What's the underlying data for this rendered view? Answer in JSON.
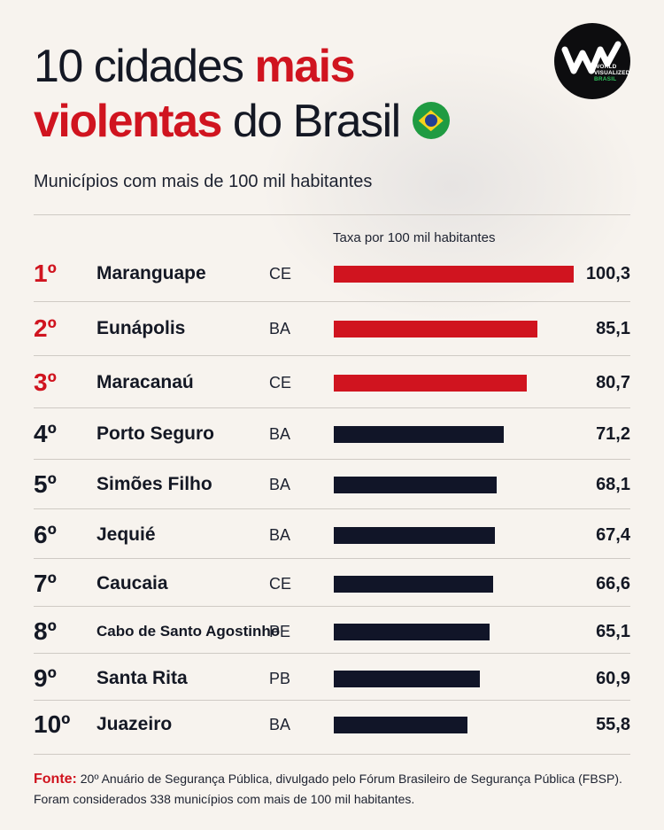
{
  "title": {
    "part1": "10 cidades ",
    "highlight1": "mais",
    "highlight2": "violentas",
    "part2": " do Brasil"
  },
  "subtitle": "Municípios com mais de 100 mil habitantes",
  "logo": {
    "line1": "WORLD",
    "line2": "VISUALIZED",
    "line3": "BRASIL"
  },
  "colors": {
    "accent": "#d0141f",
    "dark": "#111528"
  },
  "chart_data": {
    "type": "bar",
    "xlabel": "Taxa por 100 mil habitantes",
    "xlim": [
      0,
      100.3
    ],
    "rows": [
      {
        "rank": "1º",
        "city": "Maranguape",
        "state": "CE",
        "value": 100.3,
        "label": "100,3",
        "highlight": true
      },
      {
        "rank": "2º",
        "city": "Eunápolis",
        "state": "BA",
        "value": 85.1,
        "label": "85,1",
        "highlight": true
      },
      {
        "rank": "3º",
        "city": "Maracanaú",
        "state": "CE",
        "value": 80.7,
        "label": "80,7",
        "highlight": true
      },
      {
        "rank": "4º",
        "city": "Porto Seguro",
        "state": "BA",
        "value": 71.2,
        "label": "71,2",
        "highlight": false
      },
      {
        "rank": "5º",
        "city": "Simões Filho",
        "state": "BA",
        "value": 68.1,
        "label": "68,1",
        "highlight": false
      },
      {
        "rank": "6º",
        "city": "Jequié",
        "state": "BA",
        "value": 67.4,
        "label": "67,4",
        "highlight": false
      },
      {
        "rank": "7º",
        "city": "Caucaia",
        "state": "CE",
        "value": 66.6,
        "label": "66,6",
        "highlight": false
      },
      {
        "rank": "8º",
        "city": "Cabo de Santo Agostinho",
        "state": "PE",
        "value": 65.1,
        "label": "65,1",
        "highlight": false
      },
      {
        "rank": "9º",
        "city": "Santa Rita",
        "state": "PB",
        "value": 60.9,
        "label": "60,9",
        "highlight": false
      },
      {
        "rank": "10º",
        "city": "Juazeiro",
        "state": "BA",
        "value": 55.8,
        "label": "55,8",
        "highlight": false
      }
    ]
  },
  "footer": {
    "source_label": "Fonte:",
    "source_text": " 20º Anuário de Segurança Pública, divulgado pelo Fórum Brasileiro de Segurança Pública (FBSP).",
    "note": "Foram considerados 338 municípios com mais de 100 mil habitantes."
  }
}
